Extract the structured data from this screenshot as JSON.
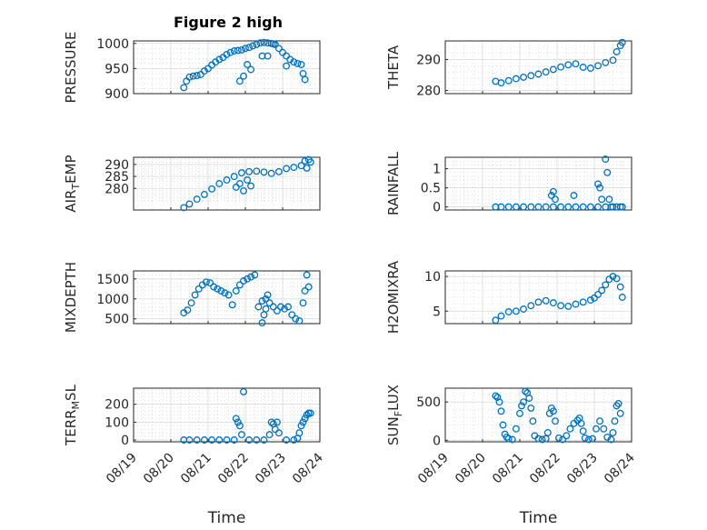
{
  "figure_title": "Figure 2 high",
  "xlabel": "Time",
  "x_ticks": [
    "08/19",
    "08/20",
    "08/21",
    "08/22",
    "08/23",
    "08/24"
  ],
  "colors": {
    "marker": "#0072BD",
    "axis": "#262626"
  },
  "chart_data": [
    {
      "type": "scatter",
      "ylabel": "PRESSURE",
      "ylim": [
        900,
        1005
      ],
      "yticks": [
        900,
        950,
        1000
      ],
      "x": [
        1.35,
        1.42,
        1.5,
        1.6,
        1.7,
        1.8,
        1.9,
        2.0,
        2.1,
        2.2,
        2.3,
        2.4,
        2.5,
        2.6,
        2.7,
        2.8,
        2.9,
        3.0,
        3.1,
        3.2,
        3.3,
        3.4,
        3.5,
        3.6,
        3.7,
        3.75,
        3.8,
        3.9,
        4.0,
        4.1,
        4.2,
        4.3,
        4.4,
        4.5,
        4.55,
        4.6,
        4.1,
        2.85,
        2.95,
        3.05,
        3.15,
        3.45,
        3.6
      ],
      "y": [
        912,
        925,
        933,
        935,
        936,
        938,
        945,
        950,
        957,
        963,
        968,
        972,
        978,
        982,
        985,
        986,
        987,
        990,
        992,
        995,
        998,
        1001,
        1002,
        1001,
        1000,
        999,
        998,
        990,
        982,
        975,
        968,
        963,
        960,
        958,
        940,
        928,
        955,
        925,
        935,
        958,
        948,
        975,
        975
      ]
    },
    {
      "type": "scatter",
      "ylabel": "THETA",
      "ylim": [
        279,
        296
      ],
      "yticks": [
        280,
        290
      ],
      "x": [
        1.35,
        1.5,
        1.7,
        1.9,
        2.1,
        2.3,
        2.5,
        2.7,
        2.9,
        3.1,
        3.3,
        3.5,
        3.7,
        3.9,
        4.1,
        4.3,
        4.5,
        4.6,
        4.7,
        4.75
      ],
      "y": [
        283,
        282.5,
        283.2,
        283.8,
        284.3,
        284.8,
        285.3,
        286,
        286.8,
        287.6,
        288.3,
        288.6,
        287.5,
        287.2,
        288,
        289,
        289.8,
        292.5,
        294.5,
        295.5
      ]
    },
    {
      "type": "scatter",
      "ylabel": "AIR_TEMP",
      "ylim": [
        271,
        293
      ],
      "yticks": [
        280,
        285,
        290
      ],
      "x": [
        1.35,
        1.5,
        1.7,
        1.9,
        2.1,
        2.3,
        2.5,
        2.7,
        2.9,
        3.1,
        3.3,
        3.5,
        3.7,
        3.9,
        4.1,
        4.3,
        4.5,
        4.6,
        4.7,
        4.75,
        2.75,
        2.85,
        2.95,
        3.05,
        3.15,
        4.65
      ],
      "y": [
        272,
        273.5,
        275.5,
        277.5,
        279.8,
        282,
        283.5,
        285,
        286.5,
        287,
        287.2,
        286.8,
        286.3,
        287,
        288.3,
        288.8,
        289.5,
        291.5,
        292,
        291,
        280.5,
        282,
        279,
        283.5,
        281,
        288.5
      ]
    },
    {
      "type": "scatter",
      "ylabel": "RAINFALL",
      "ylim": [
        -0.08,
        1.3
      ],
      "yticks": [
        0,
        0.5,
        1
      ],
      "x": [
        1.35,
        1.5,
        1.7,
        1.9,
        2.1,
        2.3,
        2.5,
        2.7,
        2.9,
        3.1,
        3.3,
        3.5,
        3.7,
        3.9,
        4.1,
        4.3,
        4.5,
        4.6,
        4.7,
        4.75,
        2.85,
        2.9,
        2.95,
        3.45,
        4.1,
        4.15,
        4.2,
        4.3,
        4.35,
        4.4,
        4.45
      ],
      "y": [
        0,
        0,
        0,
        0,
        0,
        0,
        0,
        0,
        0,
        0,
        0,
        0,
        0,
        0,
        0,
        0,
        0,
        0,
        0,
        0,
        0.3,
        0.4,
        0.2,
        0.3,
        0.6,
        0.5,
        0.2,
        1.25,
        0.9,
        0.2,
        0
      ]
    },
    {
      "type": "scatter",
      "ylabel": "MIXDEPTH",
      "ylim": [
        380,
        1700
      ],
      "yticks": [
        500,
        1000,
        1500
      ],
      "x": [
        1.35,
        1.45,
        1.55,
        1.65,
        1.75,
        1.85,
        1.95,
        2.05,
        2.15,
        2.25,
        2.35,
        2.45,
        2.55,
        2.65,
        2.75,
        2.85,
        2.95,
        3.05,
        3.15,
        3.25,
        3.35,
        3.45,
        3.55,
        3.65,
        3.75,
        3.85,
        3.95,
        4.05,
        4.15,
        4.25,
        4.35,
        4.45,
        4.55,
        4.6,
        4.65,
        4.7,
        3.45,
        3.5,
        3.55,
        3.6
      ],
      "y": [
        650,
        720,
        900,
        1100,
        1250,
        1350,
        1420,
        1400,
        1300,
        1250,
        1200,
        1150,
        1100,
        850,
        1200,
        1350,
        1450,
        1500,
        1550,
        1600,
        800,
        950,
        1000,
        900,
        800,
        700,
        800,
        750,
        800,
        600,
        500,
        450,
        900,
        1200,
        1600,
        1300,
        400,
        600,
        750,
        1100
      ]
    },
    {
      "type": "scatter",
      "ylabel": "H2OMIXRA",
      "ylim": [
        3.2,
        10.8
      ],
      "yticks": [
        5,
        10
      ],
      "x": [
        1.35,
        1.5,
        1.7,
        1.9,
        2.1,
        2.3,
        2.5,
        2.7,
        2.9,
        3.1,
        3.3,
        3.5,
        3.7,
        3.9,
        4.0,
        4.1,
        4.2,
        4.3,
        4.4,
        4.5,
        4.6,
        4.7,
        4.75
      ],
      "y": [
        3.7,
        4.3,
        4.9,
        5.0,
        5.3,
        5.8,
        6.3,
        6.5,
        6.2,
        5.8,
        5.7,
        6.0,
        6.3,
        6.6,
        6.9,
        7.4,
        8.0,
        8.8,
        9.6,
        10.0,
        9.7,
        8.5,
        7.0
      ]
    },
    {
      "type": "scatter",
      "ylabel": "TERR_MSL",
      "ylim": [
        -10,
        290
      ],
      "yticks": [
        0,
        100,
        200
      ],
      "x": [
        1.35,
        1.5,
        1.7,
        1.9,
        2.1,
        2.3,
        2.5,
        2.7,
        2.75,
        2.8,
        2.85,
        2.9,
        2.95,
        3.1,
        3.3,
        3.5,
        3.65,
        3.7,
        3.75,
        3.8,
        3.85,
        3.9,
        4.1,
        4.3,
        4.4,
        4.45,
        4.5,
        4.55,
        4.6,
        4.65,
        4.7,
        4.75
      ],
      "y": [
        0,
        0,
        0,
        0,
        0,
        0,
        0,
        0,
        120,
        100,
        80,
        30,
        270,
        0,
        0,
        0,
        30,
        100,
        90,
        60,
        100,
        40,
        0,
        0,
        10,
        40,
        80,
        100,
        120,
        140,
        150,
        150
      ]
    },
    {
      "type": "scatter",
      "ylabel": "SUN_FLUX",
      "ylim": [
        -20,
        680
      ],
      "yticks": [
        0,
        500
      ],
      "x": [
        1.35,
        1.4,
        1.45,
        1.5,
        1.55,
        1.6,
        1.65,
        1.7,
        1.8,
        1.9,
        2.0,
        2.05,
        2.1,
        2.15,
        2.2,
        2.25,
        2.3,
        2.35,
        2.4,
        2.5,
        2.6,
        2.7,
        2.75,
        2.8,
        2.85,
        2.9,
        2.95,
        3.05,
        3.15,
        3.25,
        3.35,
        3.45,
        3.55,
        3.6,
        3.65,
        3.7,
        3.75,
        3.85,
        3.95,
        4.05,
        4.15,
        4.25,
        4.35,
        4.45,
        4.5,
        4.55,
        4.6,
        4.65,
        4.7
      ],
      "y": [
        580,
        560,
        500,
        380,
        200,
        80,
        40,
        20,
        10,
        150,
        350,
        450,
        500,
        640,
        620,
        550,
        420,
        250,
        60,
        20,
        10,
        20,
        100,
        350,
        420,
        380,
        250,
        30,
        10,
        60,
        150,
        220,
        260,
        290,
        220,
        120,
        30,
        10,
        20,
        150,
        250,
        150,
        40,
        10,
        100,
        250,
        450,
        480,
        350
      ]
    }
  ]
}
